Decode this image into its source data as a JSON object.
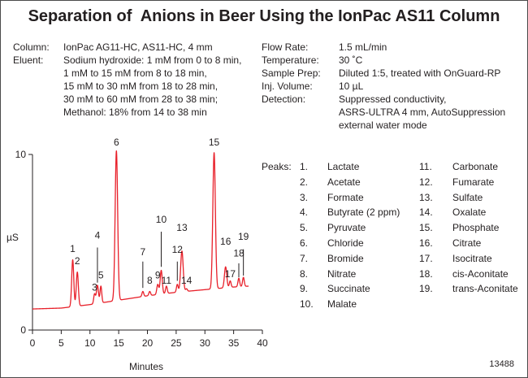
{
  "title": "Separation of  Anions in Beer Using the IonPac AS11 Column",
  "conditions_left": [
    {
      "label": "Column:",
      "lines": [
        "IonPac AG11-HC, AS11-HC, 4 mm"
      ]
    },
    {
      "label": "Eluent:",
      "lines": [
        "Sodium hydroxide: 1 mM from 0 to 8 min,",
        "1 mM to 15 mM from 8 to 18 min,",
        "15 mM to 30 mM from 18 to 28 min,",
        "30 mM to 60 mM from 28 to 38 min;",
        "Methanol:  18% from 14 to 38 min"
      ]
    }
  ],
  "conditions_right": [
    {
      "label": "Flow Rate:",
      "lines": [
        "1.5 mL/min"
      ]
    },
    {
      "label": "Temperature:",
      "lines": [
        "30 ˚C"
      ]
    },
    {
      "label": "Sample Prep:",
      "lines": [
        "Diluted 1:5, treated with OnGuard-RP"
      ]
    },
    {
      "label": "Inj. Volume:",
      "lines": [
        "10 µL"
      ]
    },
    {
      "label": "Detection:",
      "lines": [
        "Suppressed conductivity,",
        "ASRS-ULTRA 4 mm, AutoSuppression",
        "external water mode"
      ]
    }
  ],
  "peaks_label": "Peaks:",
  "peaks": [
    {
      "num": "1.",
      "name": "Lactate"
    },
    {
      "num": "2.",
      "name": "Acetate"
    },
    {
      "num": "3.",
      "name": "Formate"
    },
    {
      "num": "4.",
      "name": "Butyrate (2 ppm)"
    },
    {
      "num": "5.",
      "name": "Pyruvate"
    },
    {
      "num": "6.",
      "name": "Chloride"
    },
    {
      "num": "7.",
      "name": "Bromide"
    },
    {
      "num": "8.",
      "name": "Nitrate"
    },
    {
      "num": "9.",
      "name": "Succinate"
    },
    {
      "num": "10.",
      "name": "Malate"
    },
    {
      "num": "11.",
      "name": "Carbonate"
    },
    {
      "num": "12.",
      "name": "Fumarate"
    },
    {
      "num": "13.",
      "name": "Sulfate"
    },
    {
      "num": "14.",
      "name": "Oxalate"
    },
    {
      "num": "15.",
      "name": "Phosphate"
    },
    {
      "num": "16.",
      "name": "Citrate"
    },
    {
      "num": "17.",
      "name": "Isocitrate"
    },
    {
      "num": "18.",
      "name": "cis-Aconitate"
    },
    {
      "num": "19.",
      "name": "trans-Aconitate"
    }
  ],
  "figure_number": "13488",
  "colors": {
    "trace": "#e8202a",
    "text": "#231f20",
    "frame": "#4a4a4a"
  },
  "chart_data": {
    "type": "line",
    "xlabel": "Minutes",
    "ylabel": "µS",
    "xlim": [
      0,
      40
    ],
    "ylim": [
      0,
      10
    ],
    "xticks": [
      "0",
      "5",
      "10",
      "15",
      "20",
      "25",
      "30",
      "35",
      "40"
    ],
    "yticks": [
      "0",
      "10"
    ],
    "grid": false,
    "baseline": [
      [
        0,
        1.2
      ],
      [
        5,
        1.25
      ],
      [
        10,
        1.45
      ],
      [
        15,
        1.7
      ],
      [
        20,
        1.95
      ],
      [
        25,
        2.15
      ],
      [
        30,
        2.3
      ],
      [
        35,
        2.45
      ],
      [
        37.6,
        2.5
      ]
    ],
    "peaks": [
      {
        "label": "1",
        "x": 7.0,
        "height": 4.0,
        "width": 0.18,
        "label_y": 4.45
      },
      {
        "label": "2",
        "x": 7.8,
        "height": 3.3,
        "width": 0.18,
        "label_y": 3.75
      },
      {
        "label": "3",
        "x": 10.8,
        "height": 2.05,
        "width": 0.15,
        "label_y": 2.25
      },
      {
        "label": "4",
        "x": 11.3,
        "height": 2.55,
        "width": 0.18,
        "label_y": 5.2,
        "line": [
          2.7,
          4.7
        ]
      },
      {
        "label": "5",
        "x": 11.9,
        "height": 2.5,
        "width": 0.15,
        "label_y": 2.95
      },
      {
        "label": "6",
        "x": 14.6,
        "height": 10.2,
        "width": 0.22,
        "label_y": 10.5
      },
      {
        "label": "7",
        "x": 19.2,
        "height": 2.2,
        "width": 0.15,
        "label_y": 4.25,
        "line": [
          2.4,
          3.9
        ]
      },
      {
        "label": "8",
        "x": 20.4,
        "height": 2.2,
        "width": 0.15,
        "label_y": 2.65
      },
      {
        "label": "9",
        "x": 21.8,
        "height": 2.6,
        "width": 0.17,
        "label_y": 2.95
      },
      {
        "label": "10",
        "x": 22.4,
        "height": 3.4,
        "width": 0.18,
        "label_y": 6.1,
        "line": [
          3.6,
          5.6
        ]
      },
      {
        "label": "11",
        "x": 23.3,
        "height": 2.5,
        "width": 0.15,
        "label_y": 2.65
      },
      {
        "label": "12",
        "x": 25.2,
        "height": 2.6,
        "width": 0.15,
        "label_y": 4.4,
        "line": [
          2.8,
          3.9
        ]
      },
      {
        "label": "13",
        "x": 26.0,
        "height": 4.5,
        "width": 0.22,
        "label_y": 5.65
      },
      {
        "label": "14",
        "x": 26.8,
        "height": 2.35,
        "width": 0.15,
        "label_y": 2.65
      },
      {
        "label": "15",
        "x": 31.6,
        "height": 10.1,
        "width": 0.22,
        "label_y": 10.5
      },
      {
        "label": "16",
        "x": 33.6,
        "height": 3.6,
        "width": 0.2,
        "label_y": 4.85
      },
      {
        "label": "17",
        "x": 34.4,
        "height": 2.8,
        "width": 0.15,
        "label_y": 3.0
      },
      {
        "label": "18",
        "x": 35.9,
        "height": 2.95,
        "width": 0.15,
        "label_y": 4.2,
        "line": [
          3.0,
          3.8
        ]
      },
      {
        "label": "19",
        "x": 36.7,
        "height": 3.0,
        "width": 0.15,
        "label_y": 5.15,
        "line": [
          3.1,
          4.6
        ]
      }
    ]
  }
}
